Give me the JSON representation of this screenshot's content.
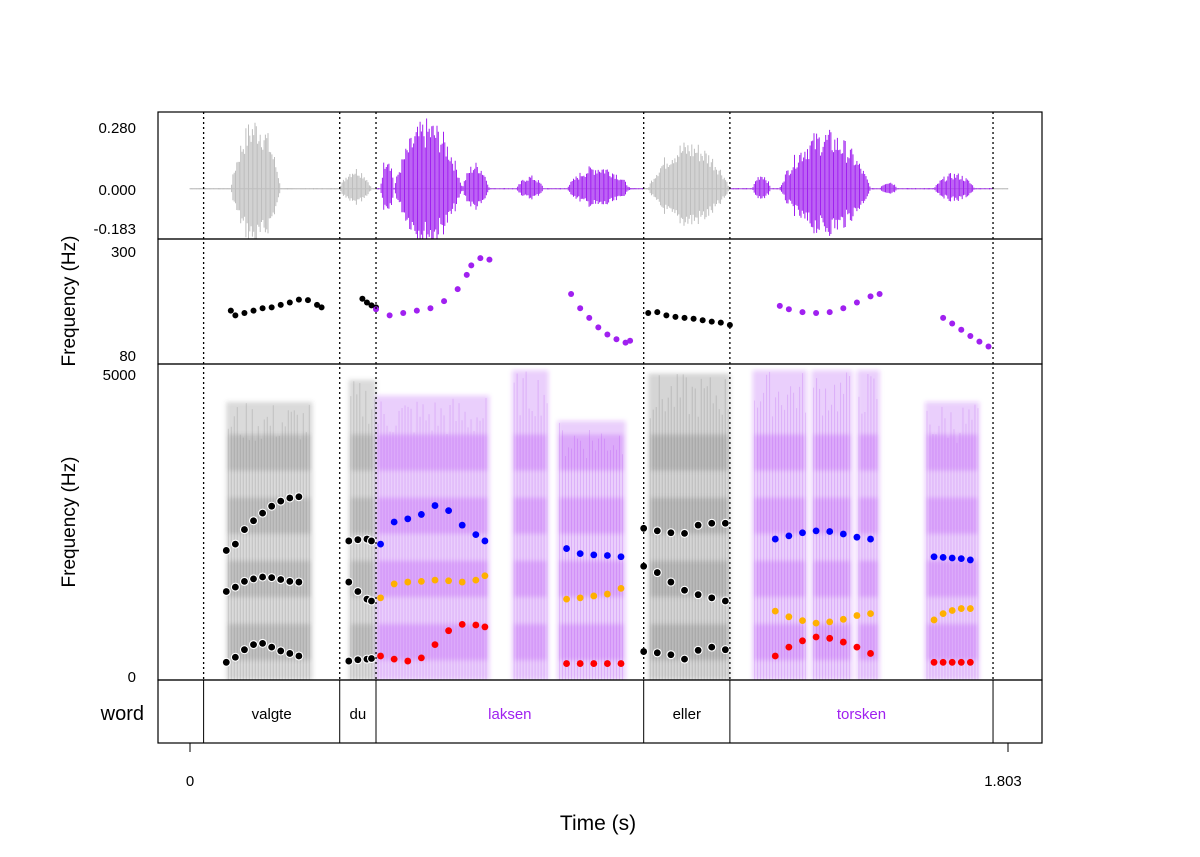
{
  "chart_data": {
    "type": "scatter",
    "title": "",
    "xlabel": "Time (s)",
    "x_range": [
      0,
      1.803
    ],
    "x_ticks": [
      "0",
      "1.803"
    ],
    "highlight_color": "#a020f0",
    "base_color": "#bebebe",
    "words": [
      {
        "label": "valgte",
        "start": 0.03,
        "end": 0.33,
        "highlight": false
      },
      {
        "label": "du",
        "start": 0.33,
        "end": 0.41,
        "highlight": false
      },
      {
        "label": "laksen",
        "start": 0.41,
        "end": 1.0,
        "highlight": true
      },
      {
        "label": "eller",
        "start": 1.0,
        "end": 1.19,
        "highlight": false
      },
      {
        "label": "torsken",
        "start": 1.19,
        "end": 1.77,
        "highlight": true
      }
    ],
    "tier_label": "word",
    "waveform": {
      "y_ticks": [
        "0.280",
        "0.000",
        "-0.183"
      ],
      "ylim": [
        -0.183,
        0.28
      ]
    },
    "pitch": {
      "ylabel": "Frequency (Hz)",
      "y_ticks": [
        "300",
        "80"
      ],
      "ylim": [
        80,
        300
      ],
      "series": [
        {
          "name": "pitch-valgte",
          "color": "#000000",
          "x": [
            0.09,
            0.1,
            0.12,
            0.14,
            0.16,
            0.18,
            0.2,
            0.22,
            0.24,
            0.26,
            0.28,
            0.29
          ],
          "y": [
            175,
            165,
            170,
            175,
            180,
            182,
            187,
            192,
            198,
            197,
            187,
            182
          ]
        },
        {
          "name": "pitch-du",
          "color": "#000000",
          "x": [
            0.38,
            0.39,
            0.4,
            0.41
          ],
          "y": [
            200,
            192,
            186,
            182
          ]
        },
        {
          "name": "pitch-laksen",
          "color": "#a020f0",
          "x": [
            0.41,
            0.44,
            0.47,
            0.5,
            0.53,
            0.56,
            0.59,
            0.61,
            0.62,
            0.64,
            0.66
          ],
          "y": [
            178,
            165,
            170,
            175,
            180,
            195,
            220,
            250,
            270,
            285,
            282
          ]
        },
        {
          "name": "pitch-laksen-2",
          "color": "#a020f0",
          "x": [
            0.84,
            0.86,
            0.88,
            0.9,
            0.92,
            0.94,
            0.96,
            0.97
          ],
          "y": [
            210,
            180,
            160,
            140,
            125,
            115,
            108,
            112
          ]
        },
        {
          "name": "pitch-eller",
          "color": "#000000",
          "x": [
            1.01,
            1.03,
            1.05,
            1.07,
            1.09,
            1.11,
            1.13,
            1.15,
            1.17,
            1.19
          ],
          "y": [
            170,
            172,
            165,
            162,
            160,
            158,
            155,
            152,
            150,
            145
          ]
        },
        {
          "name": "pitch-torsken",
          "color": "#a020f0",
          "x": [
            1.3,
            1.32,
            1.35,
            1.38,
            1.41,
            1.44,
            1.47,
            1.5,
            1.52
          ],
          "y": [
            185,
            178,
            172,
            170,
            172,
            180,
            192,
            205,
            210
          ]
        },
        {
          "name": "pitch-torsken-2",
          "color": "#a020f0",
          "x": [
            1.66,
            1.68,
            1.7,
            1.72,
            1.74,
            1.76
          ],
          "y": [
            160,
            148,
            135,
            122,
            110,
            100
          ]
        }
      ]
    },
    "spectrogram": {
      "ylabel": "Frequency (Hz)",
      "y_ticks": [
        "5000",
        "0"
      ],
      "ylim": [
        0,
        5000
      ],
      "formants": [
        {
          "name": "F1-valgte",
          "color": "#000000",
          "x": [
            0.08,
            0.1,
            0.12,
            0.14,
            0.16,
            0.18,
            0.2,
            0.22,
            0.24
          ],
          "y": [
            280,
            360,
            480,
            560,
            580,
            520,
            460,
            420,
            380
          ]
        },
        {
          "name": "F2-valgte",
          "color": "#000000",
          "x": [
            0.08,
            0.1,
            0.12,
            0.14,
            0.16,
            0.18,
            0.2,
            0.22,
            0.24
          ],
          "y": [
            1400,
            1470,
            1560,
            1600,
            1630,
            1620,
            1590,
            1560,
            1550
          ]
        },
        {
          "name": "F3-valgte",
          "color": "#000000",
          "x": [
            0.08,
            0.1,
            0.12,
            0.14,
            0.16,
            0.18,
            0.2,
            0.22,
            0.24
          ],
          "y": [
            2050,
            2150,
            2380,
            2520,
            2640,
            2750,
            2830,
            2880,
            2900
          ]
        },
        {
          "name": "F1-du",
          "color": "#000000",
          "x": [
            0.35,
            0.37,
            0.39,
            0.4
          ],
          "y": [
            300,
            320,
            330,
            340
          ]
        },
        {
          "name": "F2-du",
          "color": "#000000",
          "x": [
            0.35,
            0.37,
            0.39,
            0.4
          ],
          "y": [
            1550,
            1400,
            1280,
            1250
          ]
        },
        {
          "name": "F3-du",
          "color": "#000000",
          "x": [
            0.35,
            0.37,
            0.39,
            0.4
          ],
          "y": [
            2200,
            2220,
            2230,
            2200
          ]
        },
        {
          "name": "F1-laksen",
          "color": "#ff0000",
          "x": [
            0.42,
            0.45,
            0.48,
            0.51,
            0.54,
            0.57,
            0.6,
            0.63,
            0.65
          ],
          "y": [
            380,
            330,
            300,
            350,
            560,
            780,
            880,
            870,
            840
          ]
        },
        {
          "name": "F2-laksen",
          "color": "#ffb000",
          "x": [
            0.42,
            0.45,
            0.48,
            0.51,
            0.54,
            0.57,
            0.6,
            0.63,
            0.65
          ],
          "y": [
            1300,
            1520,
            1550,
            1560,
            1580,
            1570,
            1550,
            1580,
            1650
          ]
        },
        {
          "name": "F3-laksen",
          "color": "#0000ff",
          "x": [
            0.42,
            0.45,
            0.48,
            0.51,
            0.54,
            0.57,
            0.6,
            0.63,
            0.65
          ],
          "y": [
            2150,
            2500,
            2550,
            2620,
            2760,
            2680,
            2450,
            2300,
            2200
          ]
        },
        {
          "name": "F1-laksen-2",
          "color": "#ff0000",
          "x": [
            0.83,
            0.86,
            0.89,
            0.92,
            0.95
          ],
          "y": [
            260,
            260,
            260,
            260,
            260
          ]
        },
        {
          "name": "F2-laksen-2",
          "color": "#ffb000",
          "x": [
            0.83,
            0.86,
            0.89,
            0.92,
            0.95
          ],
          "y": [
            1280,
            1300,
            1330,
            1360,
            1450
          ]
        },
        {
          "name": "F3-laksen-2",
          "color": "#0000ff",
          "x": [
            0.83,
            0.86,
            0.89,
            0.92,
            0.95
          ],
          "y": [
            2080,
            2000,
            1980,
            1970,
            1950
          ]
        },
        {
          "name": "F1-eller",
          "color": "#000000",
          "x": [
            1.0,
            1.03,
            1.06,
            1.09,
            1.12,
            1.15,
            1.18
          ],
          "y": [
            450,
            430,
            400,
            330,
            470,
            520,
            480
          ]
        },
        {
          "name": "F2-eller",
          "color": "#000000",
          "x": [
            1.0,
            1.03,
            1.06,
            1.09,
            1.12,
            1.15,
            1.18
          ],
          "y": [
            1800,
            1700,
            1550,
            1420,
            1350,
            1300,
            1250
          ]
        },
        {
          "name": "F3-eller",
          "color": "#000000",
          "x": [
            1.0,
            1.03,
            1.06,
            1.09,
            1.12,
            1.15,
            1.18
          ],
          "y": [
            2400,
            2360,
            2330,
            2320,
            2450,
            2480,
            2480
          ]
        },
        {
          "name": "F1-torsken",
          "color": "#ff0000",
          "x": [
            1.29,
            1.32,
            1.35,
            1.38,
            1.41,
            1.44,
            1.47,
            1.5
          ],
          "y": [
            380,
            520,
            620,
            680,
            660,
            600,
            520,
            420
          ]
        },
        {
          "name": "F2-torsken",
          "color": "#ffb000",
          "x": [
            1.29,
            1.32,
            1.35,
            1.38,
            1.41,
            1.44,
            1.47,
            1.5
          ],
          "y": [
            1090,
            1000,
            940,
            900,
            920,
            960,
            1020,
            1050
          ]
        },
        {
          "name": "F3-torsken",
          "color": "#0000ff",
          "x": [
            1.29,
            1.32,
            1.35,
            1.38,
            1.41,
            1.44,
            1.47,
            1.5
          ],
          "y": [
            2230,
            2280,
            2330,
            2360,
            2350,
            2310,
            2260,
            2230
          ]
        },
        {
          "name": "F1-torsken-2",
          "color": "#ff0000",
          "x": [
            1.64,
            1.66,
            1.68,
            1.7,
            1.72
          ],
          "y": [
            280,
            280,
            280,
            280,
            280
          ]
        },
        {
          "name": "F2-torsken-2",
          "color": "#ffb000",
          "x": [
            1.64,
            1.66,
            1.68,
            1.7,
            1.72
          ],
          "y": [
            950,
            1050,
            1100,
            1130,
            1130
          ]
        },
        {
          "name": "F3-torsken-2",
          "color": "#0000ff",
          "x": [
            1.64,
            1.66,
            1.68,
            1.7,
            1.72
          ],
          "y": [
            1950,
            1940,
            1930,
            1920,
            1900
          ]
        }
      ]
    }
  }
}
